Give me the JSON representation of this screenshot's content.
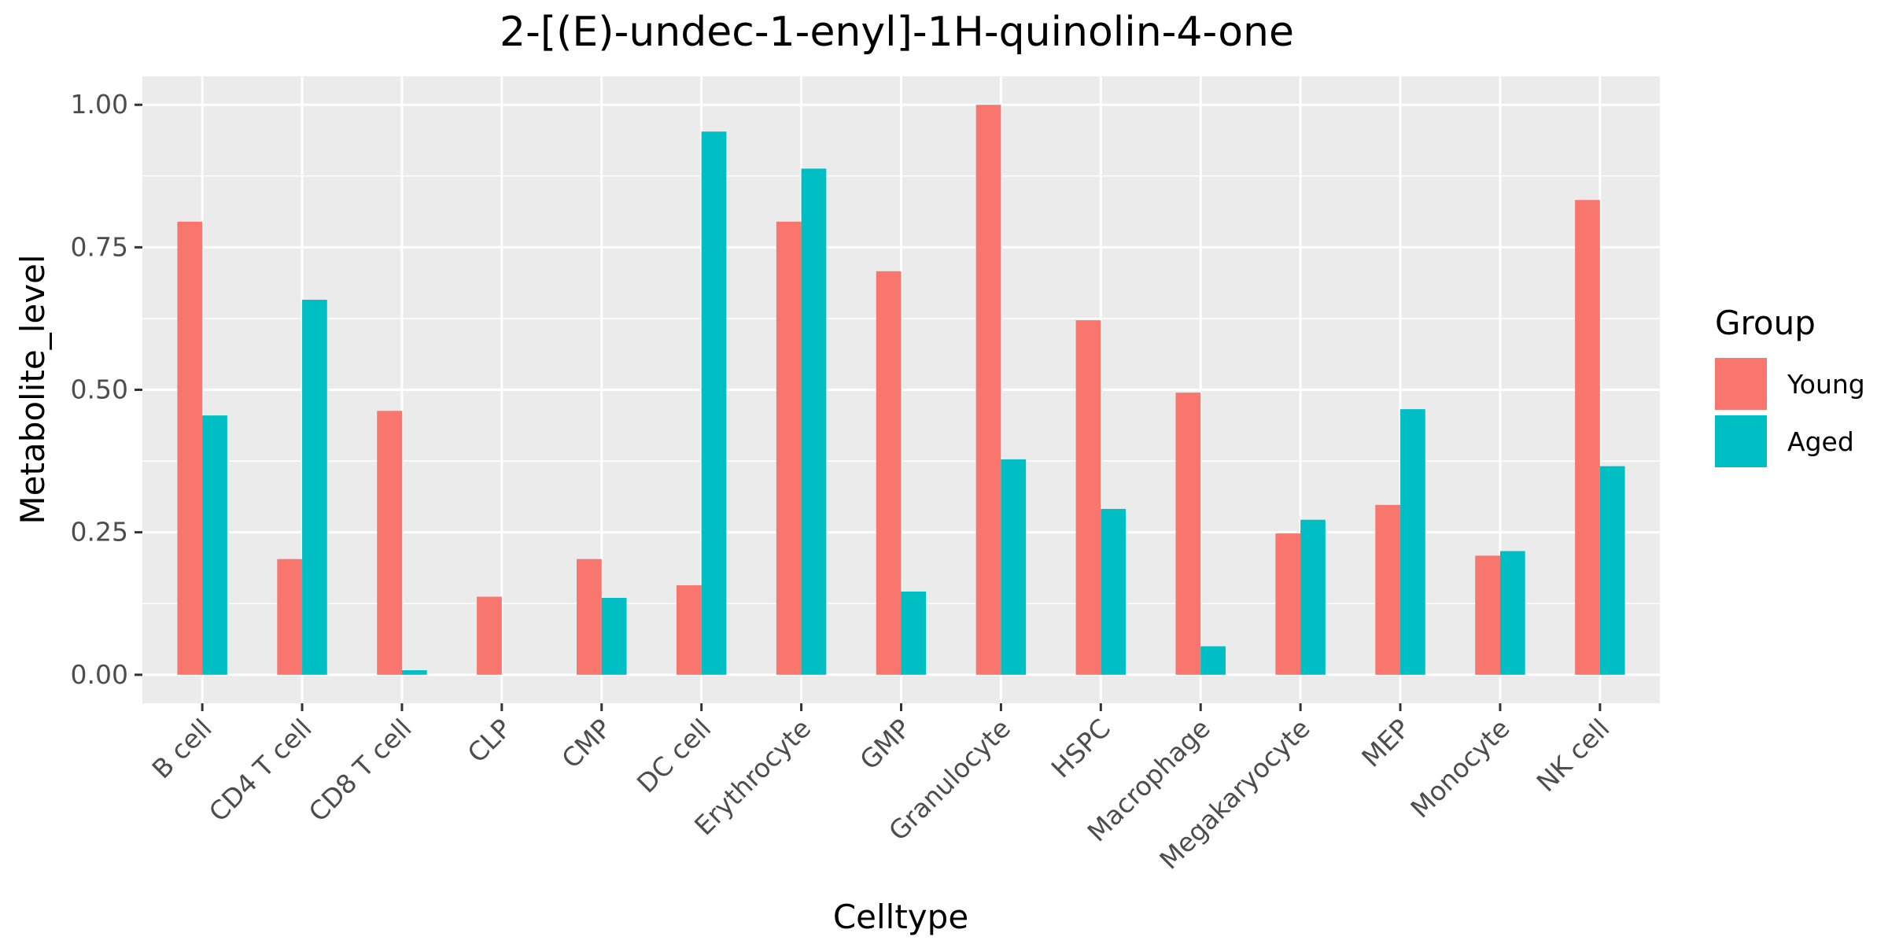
{
  "chart_data": {
    "type": "bar",
    "title": "2-[(E)-undec-1-enyl]-1H-quinolin-4-one",
    "xlabel": "Celltype",
    "ylabel": "Metabolite_level",
    "ylim": [
      -0.05,
      1.05
    ],
    "yticks": [
      0.0,
      0.25,
      0.5,
      0.75,
      1.0
    ],
    "ytick_labels": [
      "0.00",
      "0.25",
      "0.50",
      "0.75",
      "1.00"
    ],
    "categories": [
      "B cell",
      "CD4 T cell",
      "CD8 T cell",
      "CLP",
      "CMP",
      "DC cell",
      "Erythrocyte",
      "GMP",
      "Granulocyte",
      "HSPC",
      "Macrophage",
      "Megakaryocyte",
      "MEP",
      "Monocyte",
      "NK cell"
    ],
    "series": [
      {
        "name": "Young",
        "color": "#F8766D",
        "values": [
          0.795,
          0.203,
          0.463,
          0.137,
          0.203,
          0.157,
          0.795,
          0.708,
          1.0,
          0.622,
          0.495,
          0.248,
          0.298,
          0.209,
          0.833
        ]
      },
      {
        "name": "Aged",
        "color": "#00BFC4",
        "values": [
          0.455,
          0.658,
          0.008,
          0.0,
          0.135,
          0.953,
          0.888,
          0.146,
          0.378,
          0.291,
          0.05,
          0.272,
          0.466,
          0.217,
          0.366
        ]
      }
    ],
    "grid": true,
    "legend": {
      "title": "Group",
      "position": "right"
    },
    "panel_background": "#EBEBEB",
    "grid_color": "#FFFFFF"
  }
}
